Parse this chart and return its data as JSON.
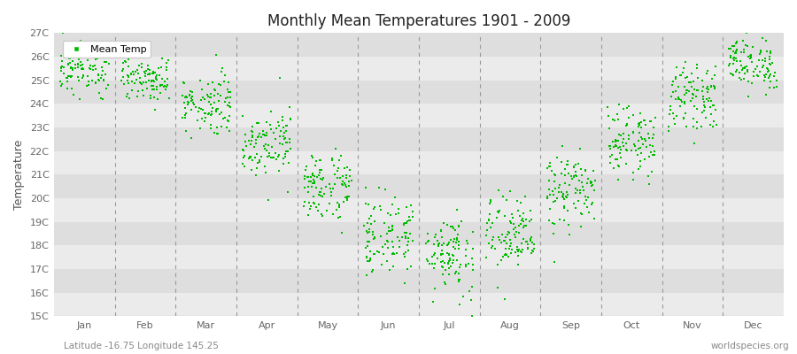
{
  "title": "Monthly Mean Temperatures 1901 - 2009",
  "ylabel": "Temperature",
  "xlabel_bottom": "Latitude -16.75 Longitude 145.25",
  "watermark": "worldspecies.org",
  "legend_label": "Mean Temp",
  "dot_color": "#00BB00",
  "background_light": "#EBEBEB",
  "background_dark": "#DEDEDE",
  "ylim": [
    15,
    27
  ],
  "yticks": [
    15,
    16,
    17,
    18,
    19,
    20,
    21,
    22,
    23,
    24,
    25,
    26,
    27
  ],
  "ytick_labels": [
    "15C",
    "16C",
    "17C",
    "18C",
    "19C",
    "20C",
    "21C",
    "22C",
    "23C",
    "24C",
    "25C",
    "26C",
    "27C"
  ],
  "months": [
    "Jan",
    "Feb",
    "Mar",
    "Apr",
    "May",
    "Jun",
    "Jul",
    "Aug",
    "Sep",
    "Oct",
    "Nov",
    "Dec"
  ],
  "month_means": [
    25.5,
    25.1,
    24.0,
    22.4,
    20.5,
    18.4,
    17.7,
    18.4,
    20.3,
    22.4,
    24.3,
    25.7
  ],
  "month_stds": [
    0.55,
    0.5,
    0.65,
    0.7,
    0.75,
    0.85,
    0.9,
    0.85,
    0.8,
    0.7,
    0.65,
    0.55
  ],
  "n_years": 109
}
